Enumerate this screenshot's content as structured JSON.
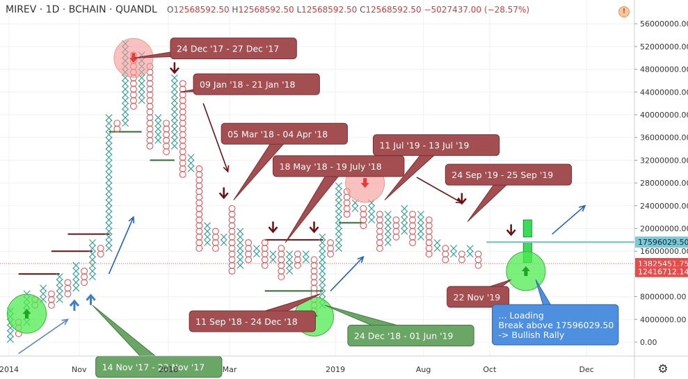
{
  "header": {
    "symbol": "MIREV · 1D · BCHAIN · QUANDL",
    "ohlc": [
      {
        "k": "O",
        "v": "12568592.50"
      },
      {
        "k": "H",
        "v": "12568592.50"
      },
      {
        "k": "L",
        "v": "12568592.50"
      },
      {
        "k": "C",
        "v": "12568592.50"
      },
      {
        "k": "",
        "v": "−5027437.00 (−28.57%)"
      }
    ],
    "alert_icon": "exclamation-icon"
  },
  "settings_icon": "gear-icon",
  "colors": {
    "x_color": "#2a9d8f",
    "o_color": "#e05a5a",
    "callout_red": "#a34f52",
    "callout_green": "#6aa665",
    "callout_blue": "#4f8fe0",
    "trend_blue": "#1f5fbf",
    "dark_red": "#6b0f12",
    "cyan_line": "#7ec8d6",
    "price_red": "#e94b4b"
  },
  "chart_data": {
    "type": "point-and-figure",
    "y_axis": {
      "min": 0,
      "max": 56000000,
      "ticks": [
        "0.00",
        "4000000.00",
        "8000000.00",
        "12000000.00",
        "16000000.00",
        "20000000.00",
        "24000000.00",
        "28000000.00",
        "32000000.00",
        "36000000.00",
        "40000000.00",
        "44000000.00",
        "48000000.00",
        "52000000.00",
        "56000000.00"
      ]
    },
    "x_axis": {
      "labels": [
        {
          "t": "2014",
          "d": 0
        },
        {
          "t": "Nov",
          "d": 5.5
        },
        {
          "t": "2018",
          "d": 12.5
        },
        {
          "t": "Mar",
          "d": 17.3
        },
        {
          "t": "2019",
          "d": 25.6
        },
        {
          "t": "Aug",
          "d": 32.5
        },
        {
          "t": "Oct",
          "d": 37.7
        },
        {
          "t": "Dec",
          "d": 45.3
        }
      ]
    },
    "price_labels": [
      {
        "value": 17596029.5,
        "text": "17596029.50",
        "color": "#7ec8d6"
      },
      {
        "value": 13825451.75,
        "text": "13825451.75",
        "color": "#e94b4b"
      },
      {
        "value": 12416712.14,
        "text": "12416712.14",
        "color": "#e94b4b"
      }
    ],
    "columns": [
      {
        "t": "x",
        "lo": 0,
        "hi": 6000000
      },
      {
        "t": "o",
        "lo": 1000000,
        "hi": 4000000
      },
      {
        "t": "x",
        "lo": 3000000,
        "hi": 9000000
      },
      {
        "t": "o",
        "lo": 6000000,
        "hi": 8000000
      },
      {
        "t": "x",
        "lo": 7000000,
        "hi": 10000000
      },
      {
        "t": "o",
        "lo": 6000000,
        "hi": 9000000
      },
      {
        "t": "x",
        "lo": 7000000,
        "hi": 12000000
      },
      {
        "t": "o",
        "lo": 8000000,
        "hi": 11000000
      },
      {
        "t": "x",
        "lo": 9000000,
        "hi": 14000000
      },
      {
        "t": "o",
        "lo": 10000000,
        "hi": 13000000
      },
      {
        "t": "x",
        "lo": 11000000,
        "hi": 18000000
      },
      {
        "t": "o",
        "lo": 15000000,
        "hi": 17000000
      },
      {
        "t": "x",
        "lo": 16000000,
        "hi": 40000000
      },
      {
        "t": "o",
        "lo": 37000000,
        "hi": 39000000
      },
      {
        "t": "x",
        "lo": 38000000,
        "hi": 53000000
      },
      {
        "t": "o",
        "lo": 41000000,
        "hi": 51000000
      },
      {
        "t": "x",
        "lo": 42000000,
        "hi": 51000000
      },
      {
        "t": "o",
        "lo": 34000000,
        "hi": 49000000
      },
      {
        "t": "x",
        "lo": 35000000,
        "hi": 40000000
      },
      {
        "t": "o",
        "lo": 33000000,
        "hi": 39000000
      },
      {
        "t": "x",
        "lo": 34000000,
        "hi": 47000000
      },
      {
        "t": "o",
        "lo": 29000000,
        "hi": 46000000
      },
      {
        "t": "x",
        "lo": 30000000,
        "hi": 33000000
      },
      {
        "t": "o",
        "lo": 16000000,
        "hi": 31000000
      },
      {
        "t": "x",
        "lo": 17000000,
        "hi": 21000000
      },
      {
        "t": "o",
        "lo": 16000000,
        "hi": 20000000
      },
      {
        "t": "x",
        "lo": 17000000,
        "hi": 19000000
      },
      {
        "t": "o",
        "lo": 12000000,
        "hi": 24000000
      },
      {
        "t": "x",
        "lo": 13000000,
        "hi": 20000000
      },
      {
        "t": "o",
        "lo": 14000000,
        "hi": 18000000
      },
      {
        "t": "x",
        "lo": 15000000,
        "hi": 17000000
      },
      {
        "t": "o",
        "lo": 13000000,
        "hi": 18000000
      },
      {
        "t": "x",
        "lo": 14000000,
        "hi": 16000000
      },
      {
        "t": "o",
        "lo": 11000000,
        "hi": 17000000
      },
      {
        "t": "x",
        "lo": 12000000,
        "hi": 16000000
      },
      {
        "t": "o",
        "lo": 13000000,
        "hi": 16000000
      },
      {
        "t": "x",
        "lo": 14000000,
        "hi": 16000000
      },
      {
        "t": "o",
        "lo": 5000000,
        "hi": 15000000
      },
      {
        "t": "x",
        "lo": 6000000,
        "hi": 19000000
      },
      {
        "t": "o",
        "lo": 15000000,
        "hi": 18000000
      },
      {
        "t": "x",
        "lo": 16000000,
        "hi": 28000000
      },
      {
        "t": "o",
        "lo": 22000000,
        "hi": 27000000
      },
      {
        "t": "x",
        "lo": 23000000,
        "hi": 25000000
      },
      {
        "t": "o",
        "lo": 20000000,
        "hi": 24000000
      },
      {
        "t": "x",
        "lo": 21000000,
        "hi": 25000000
      },
      {
        "t": "o",
        "lo": 16000000,
        "hi": 23000000
      },
      {
        "t": "x",
        "lo": 17000000,
        "hi": 23000000
      },
      {
        "t": "o",
        "lo": 18000000,
        "hi": 22000000
      },
      {
        "t": "x",
        "lo": 19000000,
        "hi": 24000000
      },
      {
        "t": "o",
        "lo": 17000000,
        "hi": 23000000
      },
      {
        "t": "x",
        "lo": 18000000,
        "hi": 23000000
      },
      {
        "t": "o",
        "lo": 15000000,
        "hi": 22000000
      },
      {
        "t": "x",
        "lo": 16000000,
        "hi": 18000000
      },
      {
        "t": "o",
        "lo": 14000000,
        "hi": 17000000
      },
      {
        "t": "x",
        "lo": 15000000,
        "hi": 17000000
      },
      {
        "t": "o",
        "lo": 14000000,
        "hi": 16000000
      },
      {
        "t": "x",
        "lo": 15000000,
        "hi": 17000000
      },
      {
        "t": "o",
        "lo": 13000000,
        "hi": 16000000
      }
    ],
    "levels": [
      {
        "c1": 1.5,
        "c2": 6.5,
        "v": 12000000,
        "color": "#6b0f12"
      },
      {
        "c1": 5.5,
        "c2": 10.5,
        "v": 16000000,
        "color": "#6b0f12"
      },
      {
        "c1": 7.5,
        "c2": 12.6,
        "v": 19000000,
        "color": "#6b0f12"
      },
      {
        "c1": 12.5,
        "c2": 16.5,
        "v": 37000000,
        "color": "#2e6b2e"
      },
      {
        "c1": 17.5,
        "c2": 20.5,
        "v": 32000000,
        "color": "#2e6b2e"
      },
      {
        "c1": 31.5,
        "c2": 38.6,
        "v": 18000000,
        "color": "#6b0f12"
      },
      {
        "c1": 31.5,
        "c2": 38.6,
        "v": 9000000,
        "color": "#2e6b2e"
      },
      {
        "c1": 40.5,
        "c2": 43.6,
        "v": 21000000,
        "color": "#2e6b2e"
      }
    ],
    "circles": [
      {
        "c": 2.5,
        "v": 5000000,
        "fill": "rgba(80,235,80,0.75)",
        "stroke": "#3fb23f",
        "arrow": "up-green"
      },
      {
        "c": 15.5,
        "v": 50000000,
        "fill": "rgba(245,150,150,0.6)",
        "stroke": "#e6a08a",
        "arrow": "down-red"
      },
      {
        "c": 37.5,
        "v": 4500000,
        "fill": "rgba(80,235,80,0.75)",
        "stroke": "#3fb23f",
        "arrow": "up-green"
      },
      {
        "c": 43.7,
        "v": 28000000,
        "fill": "rgba(245,150,150,0.6)",
        "stroke": "#e6a08a",
        "arrow": "down-red"
      },
      {
        "c": 63.3,
        "v": 12500000,
        "fill": "rgba(80,235,80,0.75)",
        "stroke": "#3fb23f",
        "arrow": "up-green"
      }
    ],
    "dark_arrows": [
      {
        "c": 20.5,
        "v": 48000000
      },
      {
        "c": 26.5,
        "v": 26000000
      },
      {
        "c": 32.5,
        "v": 20000000
      },
      {
        "c": 37.5,
        "v": 20000000
      },
      {
        "c": 55.5,
        "v": 25000000
      },
      {
        "c": 61.5,
        "v": 19500000
      }
    ],
    "blue_arrow_markers": [
      {
        "c": 8.3,
        "v": 6500000
      },
      {
        "c": 10.3,
        "v": 7500000
      }
    ],
    "trend_arrows": [
      {
        "c1": 1.5,
        "v1": -2000000,
        "c2": 7.5,
        "v2": 4000000,
        "color": "#5b86c9"
      },
      {
        "c1": 12.5,
        "v1": 12000000,
        "c2": 15.5,
        "v2": 22000000,
        "color": "#1f5fbf"
      },
      {
        "c1": 39.5,
        "v1": 9000000,
        "c2": 43.5,
        "v2": 15000000,
        "color": "#1f5fbf"
      },
      {
        "c1": 66.5,
        "v1": 19000000,
        "c2": 70.5,
        "v2": 24000000,
        "color": "#1f5fbf"
      },
      {
        "c1": 24,
        "v1": 42000000,
        "c2": 27,
        "v2": 30000000,
        "color": "#6b0f12"
      },
      {
        "c1": 50,
        "v1": 29000000,
        "c2": 55.5,
        "v2": 24500000,
        "color": "#6b0f12"
      }
    ],
    "breakout_boxes": [
      {
        "c": 63.5,
        "v1": 18500000,
        "v2": 21500000
      },
      {
        "c": 63.5,
        "v1": 14000000,
        "v2": 17500000
      }
    ],
    "annotations": [
      {
        "text": "24 Dec '17 - 27 Dec '17",
        "kind": "red",
        "c": 20,
        "v": 53500000,
        "tc": 15.6,
        "tv": 50000000
      },
      {
        "text": "09 Jan '18 - 21 Jan '18",
        "kind": "red",
        "c": 22.8,
        "v": 47200000,
        "tc": 21.2,
        "tv": 44000000
      },
      {
        "text": "05 Mar '18 - 04 Apr '18",
        "kind": "red",
        "c": 26.2,
        "v": 38500000,
        "tc": 27.7,
        "tv": 25000000
      },
      {
        "text": "18 May '18 - 19 July '18",
        "kind": "red",
        "c": 32.5,
        "v": 32800000,
        "tc": 34,
        "tv": 17500000
      },
      {
        "text": "11 Jul '19 - 13 Jul '19",
        "kind": "red",
        "c": 44.7,
        "v": 36500000,
        "tc": 46.1,
        "tv": 25000000
      },
      {
        "text": "24 Sep '19 - 25 Sep '19",
        "kind": "red",
        "c": 53.5,
        "v": 31300000,
        "tc": 56.2,
        "tv": 21200000
      },
      {
        "text": "11 Sep '18 - 24 Dec '18",
        "kind": "red",
        "c": 22.3,
        "v": 5500000,
        "tc": 38.3,
        "tv": 8500000
      },
      {
        "text": "22 Nov '19",
        "kind": "red",
        "c": 53.7,
        "v": 9800000,
        "tc": 61.5,
        "tv": 11000000
      },
      {
        "text": "14 Nov '17 - 23 Nov '17",
        "kind": "green",
        "c": 10.9,
        "v": -2500000,
        "tc": 10.5,
        "tv": 6500000
      },
      {
        "text": "24 Dec '18 - 01 Jun '19",
        "kind": "green",
        "c": 41.6,
        "v": 3000000,
        "tc": 38.8,
        "tv": 6500000
      },
      {
        "lines": [
          "... Loading",
          "Break above 17596029.50",
          "-> Bullish  Rally"
        ],
        "kind": "blue",
        "c": 59.2,
        "v": 6600000,
        "tc": 64.5,
        "tv": 11000000
      }
    ]
  }
}
